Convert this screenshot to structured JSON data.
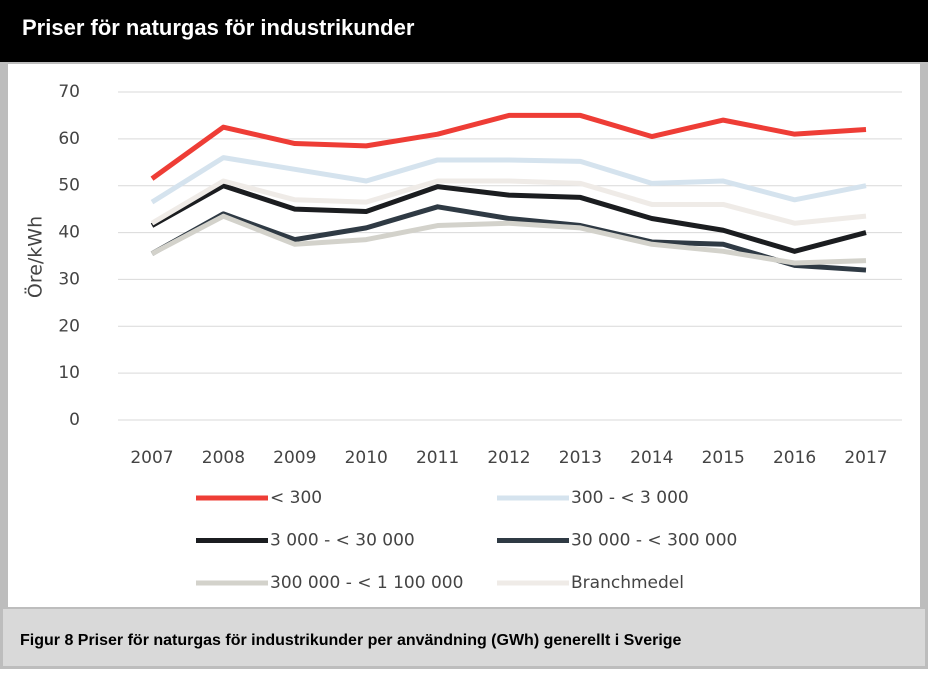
{
  "chart_data": {
    "type": "line",
    "title": "Priser för naturgas för industrikunder",
    "caption": "Figur 8 Priser för naturgas för industrikunder per användning (GWh) generellt i Sverige",
    "y_label": "Öre/kWh",
    "categories": [
      "2007",
      "2008",
      "2009",
      "2010",
      "2011",
      "2012",
      "2013",
      "2014",
      "2015",
      "2016",
      "2017"
    ],
    "series": [
      {
        "name": "< 300",
        "color": "#ee3d36",
        "values": [
          51.5,
          62.5,
          59,
          58.5,
          61,
          65,
          65,
          60.5,
          64,
          61,
          62
        ]
      },
      {
        "name": "300 - < 3 000",
        "color": "#d5e3ee",
        "values": [
          46.5,
          56,
          53.5,
          51,
          55.5,
          55.5,
          55.2,
          50.5,
          51,
          47,
          50
        ]
      },
      {
        "name": "3 000 - < 30 000",
        "color": "#1b1d20",
        "values": [
          41.5,
          50,
          45,
          44.5,
          49.8,
          48,
          47.5,
          43,
          40.5,
          36,
          40
        ]
      },
      {
        "name": "30 000 - < 300 000",
        "color": "#2f3a44",
        "values": [
          35.5,
          44,
          38.5,
          41,
          45.5,
          43,
          41.5,
          38,
          37.5,
          33,
          32
        ]
      },
      {
        "name": "300 000 - < 1 100 000",
        "color": "#d3d2cb",
        "values": [
          35.5,
          43.5,
          37.5,
          38.5,
          41.5,
          42,
          41,
          37.5,
          36,
          33.5,
          34
        ]
      },
      {
        "name": "Branchmedel",
        "color": "#efebe7",
        "values": [
          42,
          51,
          47,
          46.5,
          51,
          51,
          50.5,
          46,
          46,
          42,
          43.5
        ]
      }
    ],
    "ylim": [
      0,
      70
    ],
    "yticks": [
      0,
      10,
      20,
      30,
      40,
      50,
      60,
      70
    ],
    "grid": true,
    "legend": "bottom"
  }
}
